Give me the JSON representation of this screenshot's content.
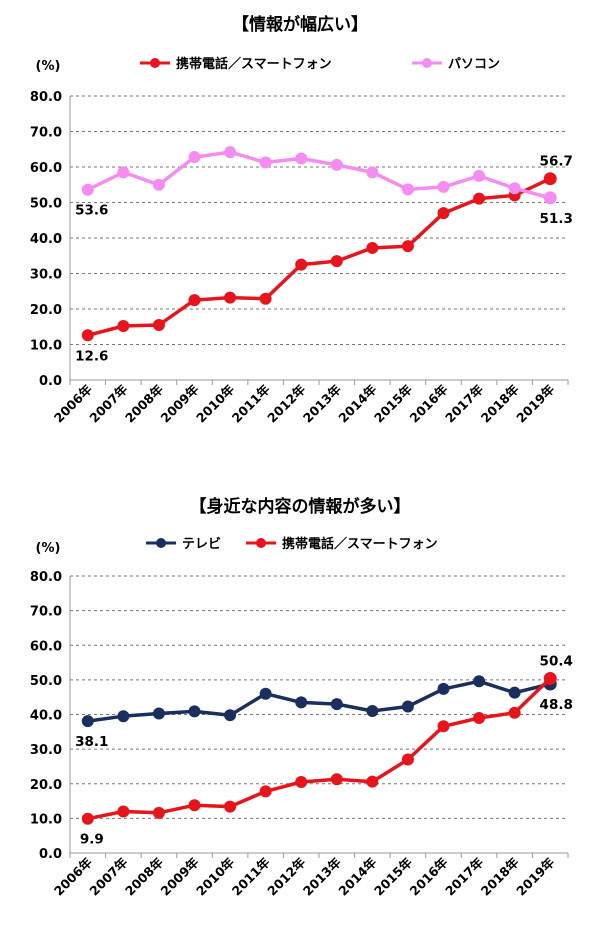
{
  "chart_data": [
    {
      "type": "line",
      "title": "【情報が幅広い】",
      "unit_label": "(%)",
      "ylim": [
        0,
        80
      ],
      "yticks": [
        "0.0",
        "10.0",
        "20.0",
        "30.0",
        "40.0",
        "50.0",
        "60.0",
        "70.0",
        "80.0"
      ],
      "categories": [
        "2006年",
        "2007年",
        "2008年",
        "2009年",
        "2010年",
        "2011年",
        "2012年",
        "2013年",
        "2014年",
        "2015年",
        "2016年",
        "2017年",
        "2018年",
        "2019年"
      ],
      "grid": true,
      "legend_position": "top",
      "series": [
        {
          "name": "携帯電話／スマートフォン",
          "color": "#e8141b",
          "values": [
            12.6,
            15.2,
            15.5,
            22.5,
            23.2,
            22.9,
            32.5,
            33.5,
            37.2,
            37.7,
            47.0,
            51.1,
            52.0,
            56.7
          ]
        },
        {
          "name": "パソコン",
          "color": "#f48cf2",
          "values": [
            53.6,
            58.5,
            55.0,
            62.8,
            64.2,
            61.3,
            62.4,
            60.6,
            58.5,
            53.7,
            54.4,
            57.5,
            54.0,
            51.3
          ]
        }
      ],
      "annotations": [
        {
          "text": "53.6",
          "series": 1,
          "index": 0,
          "pos": "below"
        },
        {
          "text": "12.6",
          "series": 0,
          "index": 0,
          "pos": "below"
        },
        {
          "text": "56.7",
          "series": 0,
          "index": 13,
          "pos": "above"
        },
        {
          "text": "51.3",
          "series": 1,
          "index": 13,
          "pos": "below"
        }
      ]
    },
    {
      "type": "line",
      "title": "【身近な内容の情報が多い】",
      "unit_label": "(%)",
      "ylim": [
        0,
        80
      ],
      "yticks": [
        "0.0",
        "10.0",
        "20.0",
        "30.0",
        "40.0",
        "50.0",
        "60.0",
        "70.0",
        "80.0"
      ],
      "categories": [
        "2006年",
        "2007年",
        "2008年",
        "2009年",
        "2010年",
        "2011年",
        "2012年",
        "2013年",
        "2014年",
        "2015年",
        "2016年",
        "2017年",
        "2018年",
        "2019年"
      ],
      "grid": true,
      "legend_position": "top",
      "series": [
        {
          "name": "テレビ",
          "color": "#1b2f5e",
          "values": [
            38.1,
            39.5,
            40.3,
            40.9,
            39.8,
            46.0,
            43.5,
            43.0,
            41.0,
            42.3,
            47.4,
            49.6,
            46.3,
            48.8
          ]
        },
        {
          "name": "携帯電話／スマートフォン",
          "color": "#e8141b",
          "values": [
            9.9,
            12.0,
            11.6,
            13.8,
            13.4,
            17.8,
            20.5,
            21.3,
            20.6,
            27.0,
            36.6,
            39.0,
            40.5,
            50.4
          ]
        }
      ],
      "annotations": [
        {
          "text": "38.1",
          "series": 0,
          "index": 0,
          "pos": "below"
        },
        {
          "text": "9.9",
          "series": 1,
          "index": 0,
          "pos": "below"
        },
        {
          "text": "50.4",
          "series": 1,
          "index": 13,
          "pos": "above"
        },
        {
          "text": "48.8",
          "series": 0,
          "index": 13,
          "pos": "below"
        }
      ]
    }
  ]
}
